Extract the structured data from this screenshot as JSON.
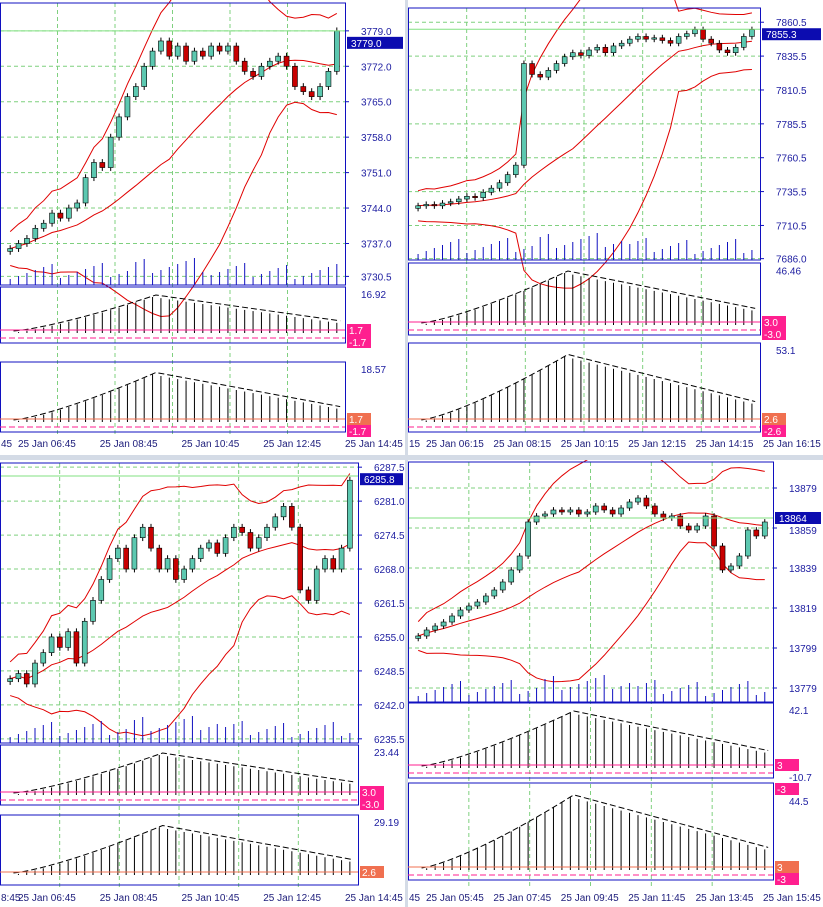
{
  "colors": {
    "up": "#5cc8b0",
    "down": "#c80000",
    "band": "#e00000",
    "grid": "#7fd07f",
    "axis": "#1c1ca0",
    "frame": "#1010c0",
    "volume": "#1010c0",
    "level": "#ff1f8f",
    "level_alt": "#f07050",
    "price_box": "#0c0cb0",
    "price_line": "#80e080"
  },
  "panels": [
    {
      "name": "top-left",
      "price_ticks": [
        "3779.0",
        "3772.0",
        "3765.0",
        "3758.0",
        "3751.0",
        "3744.0",
        "3737.0",
        "3730.5"
      ],
      "price_range": [
        3728.8,
        3784.5
      ],
      "current_price": "3779.0",
      "ind1": {
        "max": "16.92",
        "levels": [
          "1.7",
          "-1.7"
        ]
      },
      "ind2": {
        "max": "18.57",
        "levels": [
          "1.7",
          "-1.7"
        ]
      },
      "times": [
        "45",
        "25 Jan 06:45",
        "25 Jan 08:45",
        "25 Jan 10:45",
        "25 Jan 12:45",
        "25 Jan 14:45"
      ],
      "closes": [
        3736,
        3737,
        3738,
        3740,
        3741,
        3743,
        3742,
        3744,
        3745,
        3750,
        3753,
        3752,
        3758,
        3762,
        3766,
        3768,
        3772,
        3775,
        3777,
        3774,
        3776,
        3773,
        3775,
        3774,
        3776,
        3775,
        3776,
        3773,
        3771,
        3770,
        3772,
        3773,
        3774,
        3772,
        3768,
        3767,
        3766,
        3768,
        3771,
        3779
      ]
    },
    {
      "name": "top-right",
      "price_ticks": [
        "7860.5",
        "7835.5",
        "7810.5",
        "7785.5",
        "7760.5",
        "7735.5",
        "7710.5",
        "7686.0"
      ],
      "price_range": [
        7685,
        7871
      ],
      "current_price": "7855.3",
      "ind1": {
        "max": "46.46",
        "levels": [
          "3.0",
          "-3.0"
        ]
      },
      "ind2": {
        "max": "53.1",
        "levels": [
          "2.6",
          "-2.6"
        ]
      },
      "times": [
        "15",
        "25 Jan 06:15",
        "25 Jan 08:15",
        "25 Jan 10:15",
        "25 Jan 12:15",
        "25 Jan 14:15",
        "25 Jan 16:15"
      ],
      "closes": [
        7725,
        7726,
        7725,
        7727,
        7728,
        7730,
        7732,
        7731,
        7735,
        7738,
        7742,
        7748,
        7755,
        7830,
        7822,
        7820,
        7825,
        7830,
        7835,
        7838,
        7836,
        7840,
        7842,
        7838,
        7843,
        7845,
        7848,
        7850,
        7848,
        7849,
        7847,
        7845,
        7850,
        7852,
        7855,
        7848,
        7845,
        7840,
        7838,
        7842,
        7850,
        7855
      ]
    },
    {
      "name": "bottom-left",
      "price_ticks": [
        "6287.5",
        "6281.0",
        "6274.5",
        "6268.0",
        "6261.5",
        "6255.0",
        "6248.5",
        "6242.0",
        "6235.5"
      ],
      "price_range": [
        6234.7,
        6288.3
      ],
      "current_price": "6285.8",
      "ind1": {
        "max": "23.44",
        "levels": [
          "3.0",
          "-3.0"
        ]
      },
      "ind2": {
        "max": "29.19",
        "levels": [
          "2.6"
        ]
      },
      "times": [
        "8:45",
        "25 Jan 06:45",
        "25 Jan 08:45",
        "25 Jan 10:45",
        "25 Jan 12:45",
        "25 Jan 14:45"
      ],
      "closes": [
        6247,
        6248,
        6246,
        6250,
        6252,
        6255,
        6253,
        6256,
        6250,
        6258,
        6262,
        6266,
        6270,
        6272,
        6268,
        6274,
        6276,
        6272,
        6268,
        6270,
        6266,
        6268,
        6270,
        6272,
        6273,
        6271,
        6274,
        6276,
        6275,
        6272,
        6274,
        6276,
        6278,
        6280,
        6276,
        6264,
        6262,
        6268,
        6270,
        6268,
        6272,
        6285
      ]
    },
    {
      "name": "bottom-right",
      "price_ticks": [
        "13879",
        "13859",
        "13839",
        "13819",
        "13799",
        "13779"
      ],
      "price_range": [
        13772,
        13892
      ],
      "current_price": "13864",
      "ind1": {
        "max": "42.1",
        "min": "-10.7",
        "levels": [
          "3",
          "-3"
        ]
      },
      "ind2": {
        "max": "44.5",
        "levels": [
          "3",
          "-3"
        ]
      },
      "times": [
        "45",
        "25 Jan 05:45",
        "25 Jan 07:45",
        "25 Jan 09:45",
        "25 Jan 11:45",
        "25 Jan 13:45",
        "25 Jan 15:45"
      ],
      "closes": [
        13805,
        13808,
        13810,
        13812,
        13815,
        13818,
        13820,
        13822,
        13825,
        13828,
        13832,
        13838,
        13845,
        13862,
        13865,
        13866,
        13868,
        13867,
        13868,
        13866,
        13867,
        13870,
        13868,
        13866,
        13869,
        13872,
        13874,
        13870,
        13866,
        13864,
        13865,
        13860,
        13858,
        13860,
        13865,
        13850,
        13838,
        13840,
        13845,
        13858,
        13855,
        13862
      ]
    }
  ]
}
